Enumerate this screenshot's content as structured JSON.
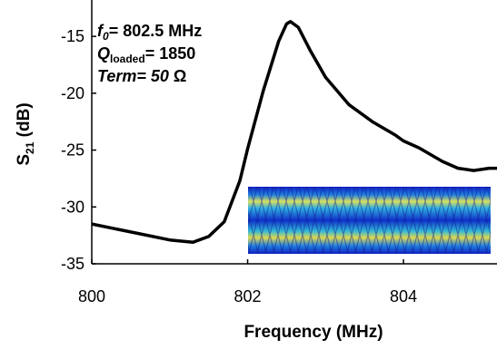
{
  "chart_data": {
    "type": "line",
    "xlabel": "Frequency (MHz)",
    "ylabel": {
      "main": "S",
      "sub": "21",
      "rest": " (dB)"
    },
    "annotations": [
      {
        "main": "f",
        "sub": "0",
        "rest": "= 802.5 MHz"
      },
      {
        "main": "Q",
        "sub": "loaded",
        "rest": "= 1850"
      },
      {
        "main": "Term= 50",
        "rest": " Ω"
      }
    ],
    "x": [
      800,
      800.5,
      801.0,
      801.3,
      801.5,
      801.7,
      801.9,
      802.0,
      802.2,
      802.4,
      802.5,
      802.55,
      802.65,
      802.8,
      803.0,
      803.3,
      803.6,
      803.9,
      804.0,
      804.2,
      804.5,
      804.7,
      804.9,
      805.1,
      805.2
    ],
    "series": [
      {
        "color": "#000000",
        "values": [
          -31.5,
          -32.2,
          -32.9,
          -33.1,
          -32.6,
          -31.3,
          -27.7,
          -24.9,
          -19.8,
          -15.4,
          -13.9,
          -13.7,
          -14.2,
          -16.2,
          -18.6,
          -21.0,
          -22.5,
          -23.7,
          -24.2,
          -24.8,
          -26.0,
          -26.6,
          -26.8,
          -26.6,
          -26.6
        ]
      }
    ],
    "xlim": [
      800,
      805.2
    ],
    "xticks": [
      800,
      802,
      804
    ],
    "ylim": [
      -35,
      -11.8
    ],
    "yticks": [
      -15,
      -20,
      -25,
      -30,
      -35
    ],
    "grid": false
  }
}
